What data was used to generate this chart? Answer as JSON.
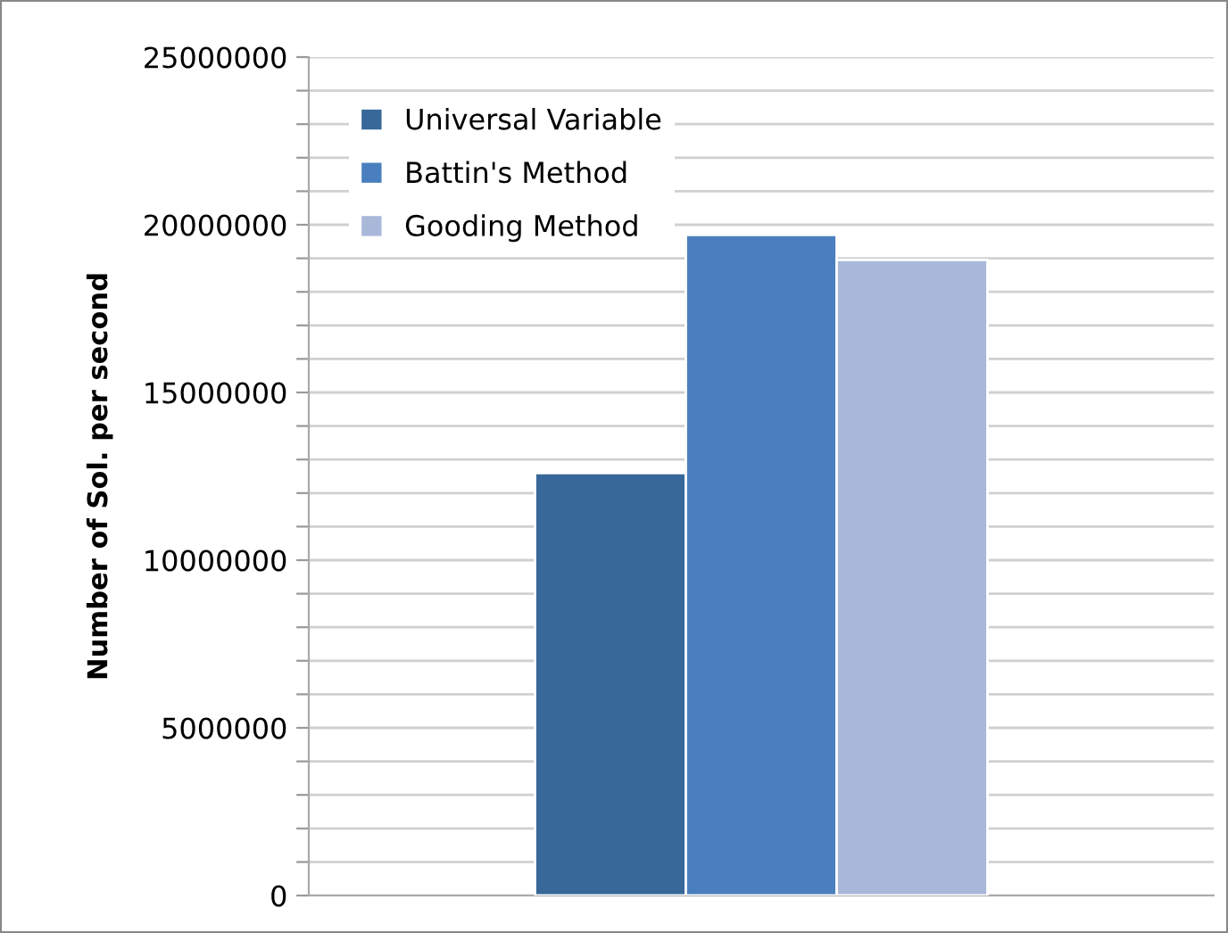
{
  "chart_data": {
    "type": "bar",
    "ylabel": "Number of Sol. per second",
    "categories": [
      null
    ],
    "series": [
      {
        "name": "Universal Variable",
        "color": "#376899",
        "values": [
          12600000
        ]
      },
      {
        "name": "Battin's Method",
        "color": "#4a7fbf",
        "values": [
          19700000
        ]
      },
      {
        "name": "Gooding Method",
        "color": "#a9b8d9",
        "values": [
          18950000
        ]
      }
    ],
    "ylim": [
      0,
      25000000
    ],
    "yticks": [
      0,
      {
        "value": 1000000,
        "label": null
      },
      {
        "value": 2000000,
        "label": null
      },
      {
        "value": 3000000,
        "label": null
      },
      {
        "value": 4000000,
        "label": null
      },
      5000000,
      {
        "value": 6000000,
        "label": null
      },
      {
        "value": 7000000,
        "label": null
      },
      {
        "value": 8000000,
        "label": null
      },
      {
        "value": 9000000,
        "label": null
      },
      10000000,
      {
        "value": 11000000,
        "label": null
      },
      {
        "value": 12000000,
        "label": null
      },
      {
        "value": 13000000,
        "label": null
      },
      {
        "value": 14000000,
        "label": null
      },
      15000000,
      {
        "value": 16000000,
        "label": null
      },
      {
        "value": 17000000,
        "label": null
      },
      {
        "value": 18000000,
        "label": null
      },
      {
        "value": 19000000,
        "label": null
      },
      20000000,
      {
        "value": 21000000,
        "label": null
      },
      {
        "value": 22000000,
        "label": null
      },
      {
        "value": 23000000,
        "label": null
      },
      {
        "value": 24000000,
        "label": null
      },
      25000000
    ],
    "grid": "y",
    "legend": "top left"
  }
}
